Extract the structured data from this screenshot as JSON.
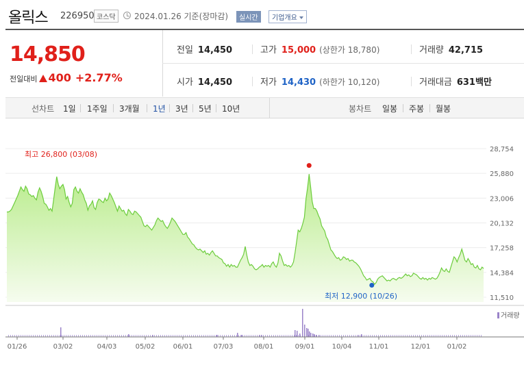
{
  "header": {
    "name": "올릭스",
    "code": "226950",
    "market": "코스닥",
    "date": "2024.01.26 기준(장마감)",
    "realtime_label": "실시간",
    "overview_label": "기업개요"
  },
  "quote": {
    "price": "14,850",
    "change_label": "전일대비",
    "change_value": "400",
    "change_pct": "+2.77%",
    "prev_close_label": "전일",
    "prev_close": "14,450",
    "high_label": "고가",
    "high": "15,000",
    "upper_limit": "(상한가 18,780)",
    "volume_label": "거래량",
    "volume": "42,715",
    "open_label": "시가",
    "open": "14,450",
    "low_label": "저가",
    "low": "14,430",
    "lower_limit": "(하한가 10,120)",
    "turnover_label": "거래대금",
    "turnover": "631",
    "turnover_unit": "백만"
  },
  "tabs": {
    "line_label": "선차트",
    "line_periods": [
      "1일",
      "1주일",
      "3개월",
      "1년",
      "3년",
      "5년",
      "10년"
    ],
    "selected": "1년",
    "candle_label": "봉차트",
    "candle_periods": [
      "일봉",
      "주봉",
      "월봉"
    ]
  },
  "chart_data": {
    "type": "area",
    "y_ticks": [
      "28,754",
      "25,880",
      "23,006",
      "20,132",
      "17,258",
      "14,384",
      "11,510"
    ],
    "ylim": [
      11510,
      28754
    ],
    "x_ticks": [
      "01/26",
      "03/02",
      "04/03",
      "05/02",
      "06/01",
      "07/03",
      "08/01",
      "09/01",
      "10/04",
      "11/01",
      "12/01",
      "01/02"
    ],
    "high_annotation": "최고 26,800 (03/08)",
    "low_annotation": "최저 12,900 (10/26)",
    "high_value": 26800,
    "low_value": 12900,
    "volume_legend": "거래량",
    "series": [
      {
        "values": [
          21400,
          21400,
          21500,
          21700,
          22100,
          22500,
          22900,
          23300,
          23800,
          24300,
          24000,
          23800,
          24400,
          24100,
          23500,
          23400,
          23200,
          23300,
          23000,
          22800,
          23700,
          24200,
          23800,
          23200,
          22400,
          22300,
          22000,
          21600,
          21800,
          21500,
          22800,
          24200,
          25500,
          24600,
          24100,
          24400,
          24600,
          24000,
          22900,
          23200,
          22500,
          22000,
          22400,
          24000,
          24300,
          23800,
          23600,
          24100,
          23700,
          23400,
          22800,
          22400,
          21600,
          22100,
          22300,
          22700,
          21900,
          21700,
          22500,
          22900,
          22800,
          22600,
          22500,
          23000,
          22700,
          22900,
          23600,
          23300,
          22900,
          22500,
          22000,
          21500,
          22100,
          21800,
          21500,
          21600,
          21200,
          21000,
          21700,
          21500,
          21200,
          21100,
          21500,
          21400,
          21200,
          21000,
          20800,
          20300,
          19800,
          19700,
          19900,
          19700,
          19500,
          19300,
          19600,
          19900,
          20400,
          20700,
          20500,
          20300,
          20400,
          20000,
          19700,
          19500,
          19800,
          20200,
          20700,
          20500,
          20300,
          20000,
          19700,
          19400,
          19100,
          18800,
          18800,
          19000,
          18500,
          18300,
          18000,
          17700,
          17600,
          17300,
          17100,
          17000,
          17100,
          16900,
          16700,
          16900,
          16500,
          16600,
          16400,
          16700,
          16900,
          16600,
          16300,
          16300,
          16100,
          16000,
          15900,
          15500,
          15400,
          15100,
          15300,
          15000,
          15300,
          15100,
          15200,
          15000,
          15000,
          15400,
          15800,
          16100,
          16500,
          17400,
          16400,
          15600,
          15200,
          15300,
          15100,
          14800,
          14700,
          14800,
          15000,
          15100,
          15300,
          15000,
          15200,
          15100,
          15200,
          15000,
          15400,
          15600,
          15200,
          15000,
          15500,
          16600,
          16300,
          15700,
          15200,
          15300,
          15100,
          15200,
          15000,
          15200,
          15600,
          16700,
          18000,
          19300,
          19100,
          19500,
          20100,
          20800,
          22900,
          24200,
          25800,
          24300,
          22600,
          21800,
          21800,
          21500,
          21000,
          20600,
          19800,
          19500,
          19200,
          18500,
          18200,
          17600,
          17000,
          16800,
          16500,
          16200,
          16000,
          16100,
          15800,
          15900,
          16200,
          16100,
          15900,
          16000,
          15700,
          15800,
          15800,
          15600,
          15500,
          15300,
          15100,
          14800,
          14400,
          14000,
          13800,
          13500,
          13600,
          13700,
          13400,
          13300,
          13000,
          13200,
          13600,
          13800,
          13900,
          14000,
          13800,
          13600,
          13400,
          13500,
          13400,
          13600,
          13700,
          13600,
          13500,
          13700,
          13800,
          13700,
          13800,
          14000,
          14200,
          14000,
          14100,
          13900,
          14000,
          14300,
          14200,
          14100,
          13900,
          13700,
          13600,
          13800,
          13600,
          13700,
          13500,
          13700,
          13600,
          13800,
          13700,
          13600,
          13700,
          14000,
          14400,
          14900,
          14600,
          14500,
          14800,
          14500,
          14400,
          15000,
          15600,
          16200,
          16000,
          15600,
          16100,
          16500,
          17100,
          16500,
          15800,
          15600,
          16000,
          15700,
          15300,
          15400,
          15000,
          14900,
          15200,
          14800,
          14700,
          15000,
          14850
        ]
      }
    ],
    "volume_bars": [
      [
        88,
        14
      ],
      [
        187,
        4
      ],
      [
        222,
        3
      ],
      [
        316,
        3
      ],
      [
        346,
        6
      ],
      [
        352,
        3
      ],
      [
        378,
        3
      ],
      [
        381,
        3
      ],
      [
        430,
        10
      ],
      [
        433,
        9
      ],
      [
        437,
        5
      ],
      [
        441,
        41
      ],
      [
        444,
        18
      ],
      [
        447,
        13
      ],
      [
        449,
        12
      ],
      [
        451,
        8
      ],
      [
        453,
        6
      ],
      [
        456,
        5
      ],
      [
        458,
        4
      ],
      [
        461,
        3
      ],
      [
        465,
        3
      ],
      [
        522,
        3
      ],
      [
        527,
        4
      ]
    ]
  }
}
